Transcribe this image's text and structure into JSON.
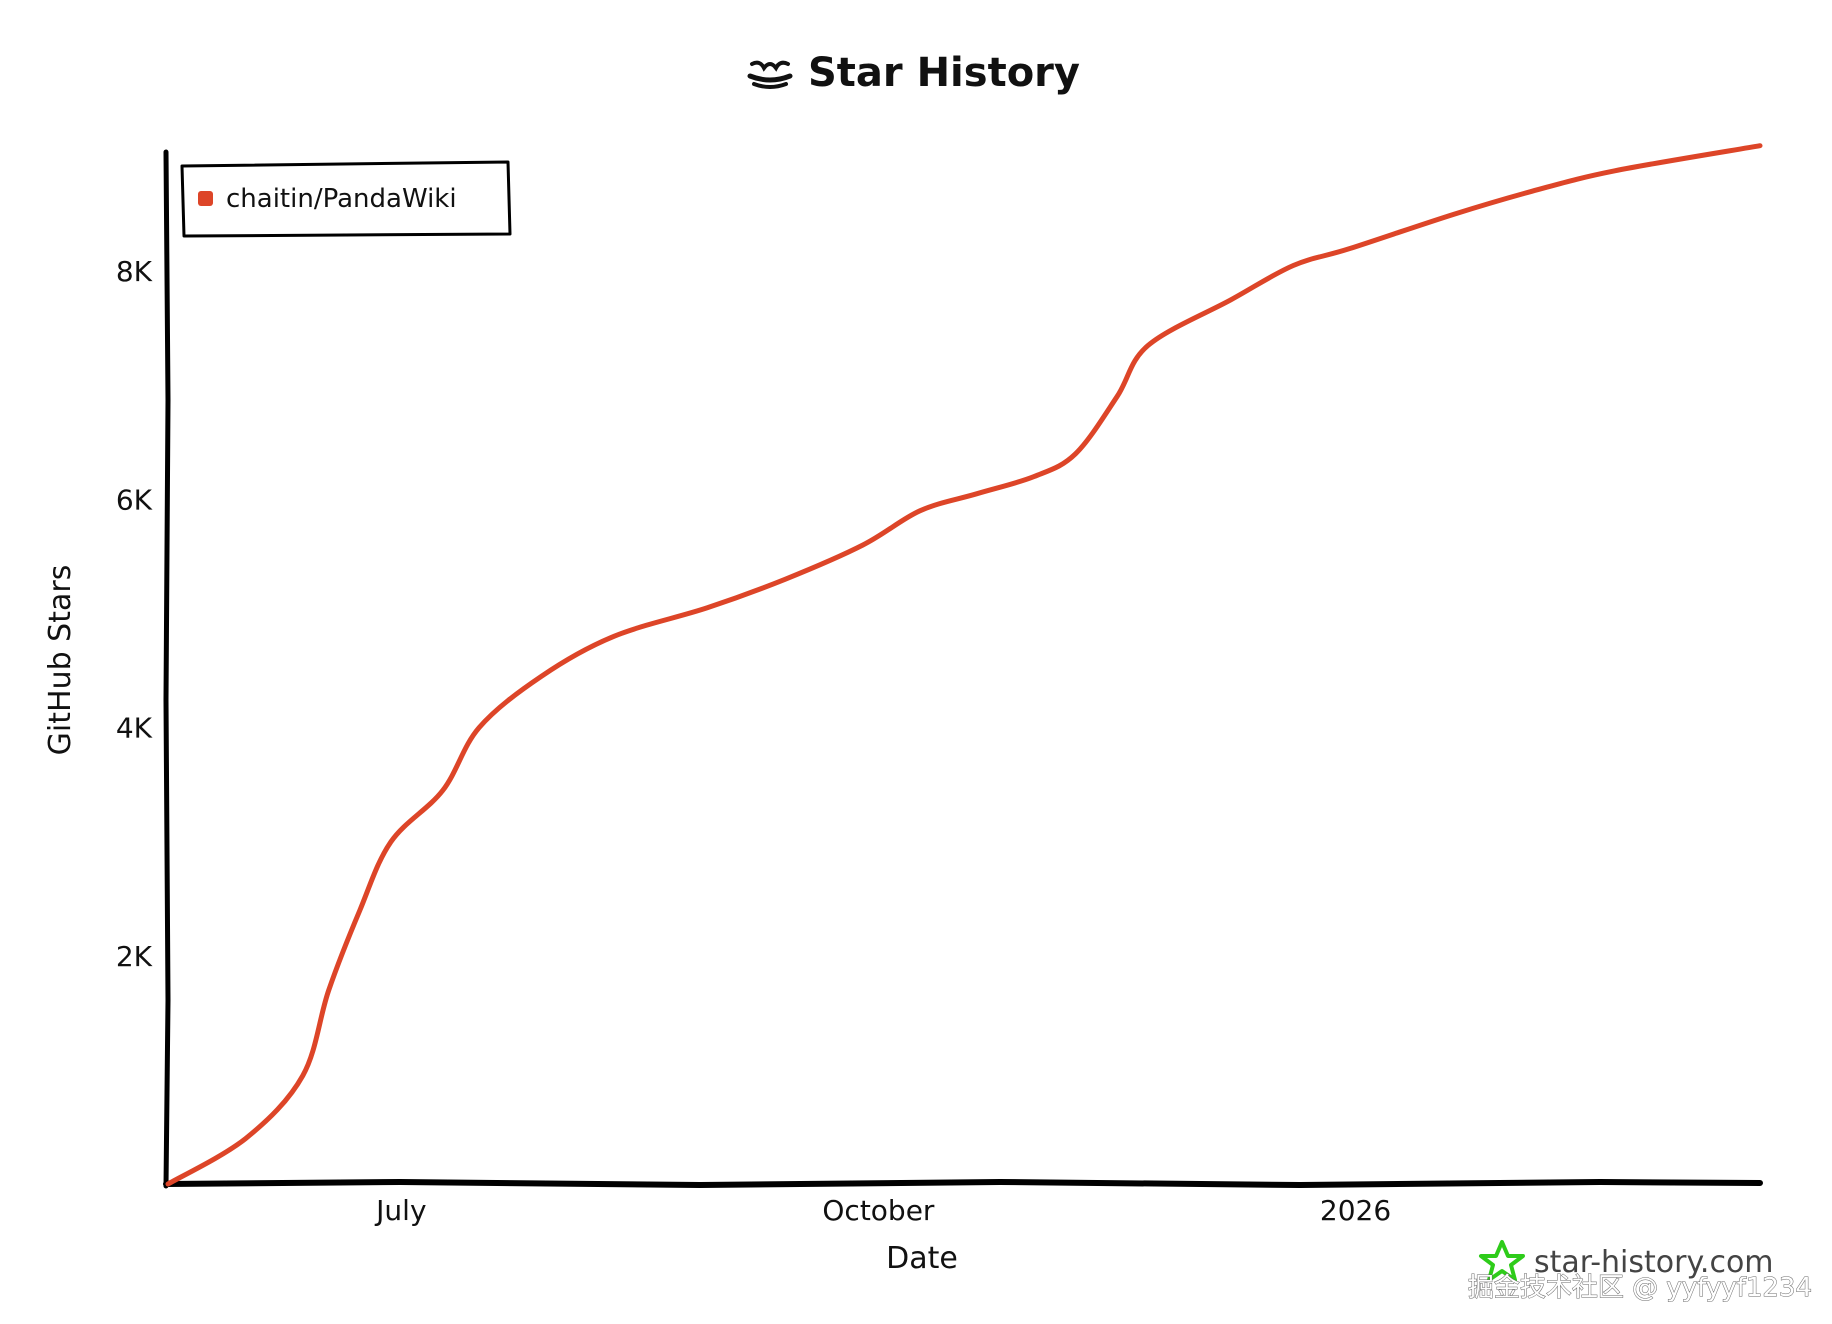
{
  "title": "Star History",
  "brand": "star-history.com",
  "watermark": "掘金技术社区 @ yyfyyf1234",
  "colors": {
    "series": "#dd4528",
    "axis": "#000000",
    "brand_icon": "#2ecc1a"
  },
  "icons": {
    "title_icon": "star-history-logo-icon",
    "brand_icon": "star-outline-icon"
  },
  "chart_data": {
    "type": "line",
    "title": "Star History",
    "xlabel": "Date",
    "ylabel": "GitHub Stars",
    "x_ticks": [
      {
        "label": "July",
        "date": "2025-07-01"
      },
      {
        "label": "October",
        "date": "2025-10-01"
      },
      {
        "label": "2026",
        "date": "2026-01-01"
      }
    ],
    "y_ticks": [
      {
        "label": "2K",
        "value": 2000
      },
      {
        "label": "4K",
        "value": 4000
      },
      {
        "label": "6K",
        "value": 6000
      },
      {
        "label": "8K",
        "value": 8000
      }
    ],
    "xlim": [
      "2025-05-17",
      "2026-03-20"
    ],
    "ylim": [
      0,
      9150
    ],
    "legend": {
      "placement": "top-left",
      "entries": [
        "chaitin/PandaWiki"
      ]
    },
    "grid": false,
    "series": [
      {
        "name": "chaitin/PandaWiki",
        "color": "#dd4528",
        "points": [
          [
            "2025-05-17",
            0
          ],
          [
            "2025-06-01",
            400
          ],
          [
            "2025-06-12",
            950
          ],
          [
            "2025-06-17",
            1700
          ],
          [
            "2025-06-23",
            2400
          ],
          [
            "2025-06-29",
            3000
          ],
          [
            "2025-07-09",
            3450
          ],
          [
            "2025-07-16",
            4000
          ],
          [
            "2025-07-28",
            4450
          ],
          [
            "2025-08-11",
            4800
          ],
          [
            "2025-08-29",
            5050
          ],
          [
            "2025-09-13",
            5300
          ],
          [
            "2025-09-28",
            5600
          ],
          [
            "2025-10-09",
            5900
          ],
          [
            "2025-10-20",
            6050
          ],
          [
            "2025-10-31",
            6200
          ],
          [
            "2025-11-08",
            6400
          ],
          [
            "2025-11-16",
            6900
          ],
          [
            "2025-11-22",
            7350
          ],
          [
            "2025-12-08",
            7750
          ],
          [
            "2025-12-20",
            8050
          ],
          [
            "2025-12-31",
            8200
          ],
          [
            "2026-01-20",
            8500
          ],
          [
            "2026-02-04",
            8700
          ],
          [
            "2026-02-20",
            8880
          ],
          [
            "2026-03-20",
            9100
          ]
        ]
      }
    ]
  }
}
